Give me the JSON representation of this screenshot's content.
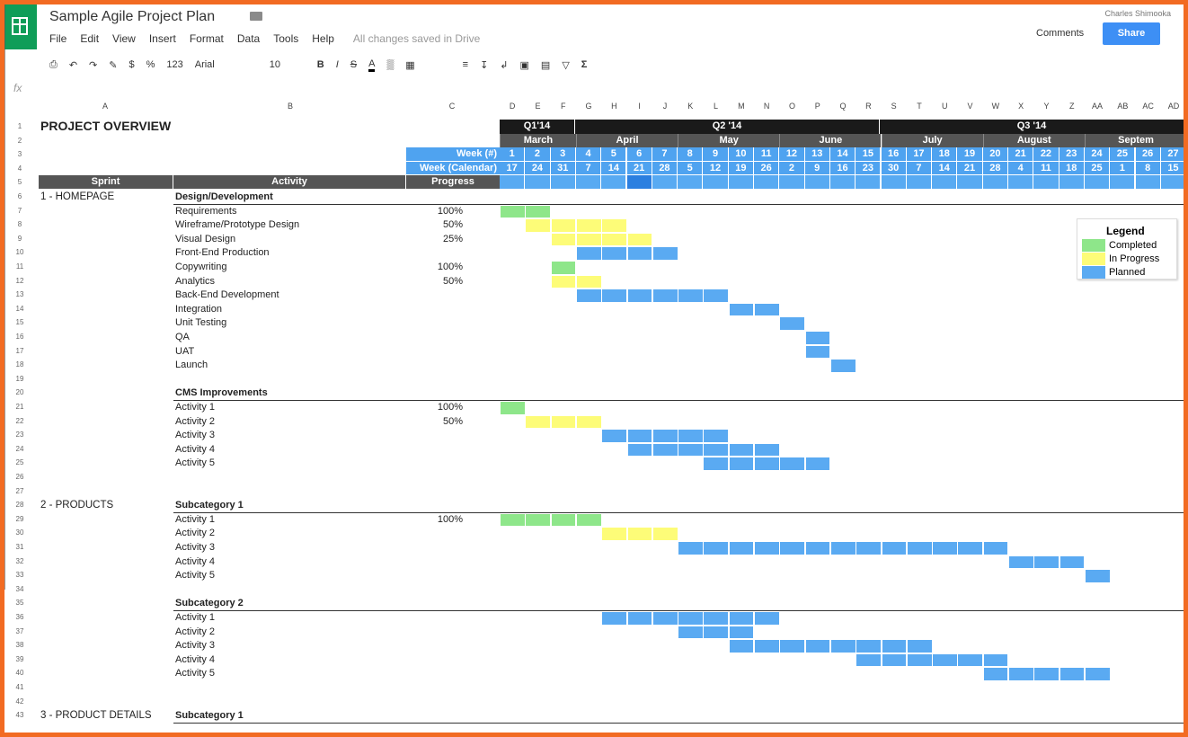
{
  "doc_title": "Sample Agile Project Plan",
  "menu": [
    "File",
    "Edit",
    "View",
    "Insert",
    "Format",
    "Data",
    "Tools",
    "Help"
  ],
  "saved_status": "All changes saved in Drive",
  "user_name": "Charles Shimooka",
  "comments_label": "Comments",
  "share_label": "Share",
  "toolbar": {
    "currency": "$",
    "percent": "%",
    "format_123": "123",
    "font": "Arial",
    "size": "10",
    "bold": "B",
    "italic": "I",
    "strike": "S",
    "text_color": "A",
    "sum": "Σ"
  },
  "fx_label": "fx",
  "columns": [
    "A",
    "B",
    "C",
    "D",
    "E",
    "F",
    "G",
    "H",
    "I",
    "J",
    "K",
    "L",
    "M",
    "N",
    "O",
    "P",
    "Q",
    "R",
    "S",
    "T",
    "U",
    "V",
    "W",
    "X",
    "Y",
    "Z",
    "AA",
    "AB",
    "AC",
    "AD"
  ],
  "sheet_title": "PROJECT OVERVIEW",
  "quarters": [
    "Q1'14",
    "Q2 '14",
    "Q3 '14"
  ],
  "months": [
    "March",
    "April",
    "May",
    "June",
    "July",
    "August",
    "Septem"
  ],
  "week_num_label": "Week (#)",
  "week_cal_label": "Week (Calendar)",
  "week_nums": [
    "1",
    "2",
    "3",
    "4",
    "5",
    "6",
    "7",
    "8",
    "9",
    "10",
    "11",
    "12",
    "13",
    "14",
    "15",
    "16",
    "17",
    "18",
    "19",
    "20",
    "21",
    "22",
    "23",
    "24",
    "25",
    "26",
    "27"
  ],
  "week_dates": [
    "17",
    "24",
    "31",
    "7",
    "14",
    "21",
    "28",
    "5",
    "12",
    "19",
    "26",
    "2",
    "9",
    "16",
    "23",
    "30",
    "7",
    "14",
    "21",
    "28",
    "4",
    "11",
    "18",
    "25",
    "1",
    "8",
    "15"
  ],
  "header_labels": {
    "sprint": "Sprint",
    "activity": "Activity",
    "progress": "Progress"
  },
  "row_numbers": [
    "1",
    "2",
    "3",
    "4",
    "5",
    "6",
    "7",
    "8",
    "9",
    "10",
    "11",
    "12",
    "13",
    "14",
    "15",
    "16",
    "17",
    "18",
    "19",
    "20",
    "21",
    "22",
    "23",
    "24",
    "25",
    "26",
    "27",
    "28",
    "29",
    "30",
    "31",
    "32",
    "33",
    "34",
    "35",
    "36",
    "37",
    "38",
    "39",
    "40",
    "41",
    "42",
    "43"
  ],
  "legend": {
    "title": "Legend",
    "completed": "Completed",
    "in_progress": "In Progress",
    "planned": "Planned"
  },
  "colors": {
    "completed": "#8ee68a",
    "in_progress": "#fdfc78",
    "planned": "#5aaaf2",
    "accent": "#0f9d58",
    "share": "#3d8ff5"
  },
  "rows": [
    {
      "row": 6,
      "sprint": "1 - HOMEPAGE",
      "activity": "Design/Development",
      "progress": "",
      "header": true,
      "bars": []
    },
    {
      "row": 7,
      "sprint": "",
      "activity": "Requirements",
      "progress": "100%",
      "bars": [
        {
          "start": 1,
          "end": 2,
          "status": "completed"
        }
      ]
    },
    {
      "row": 8,
      "sprint": "",
      "activity": "Wireframe/Prototype Design",
      "progress": "50%",
      "bars": [
        {
          "start": 2,
          "end": 2,
          "status": "in_progress"
        },
        {
          "start": 3,
          "end": 5,
          "status": "in_progress"
        }
      ]
    },
    {
      "row": 9,
      "sprint": "",
      "activity": "Visual Design",
      "progress": "25%",
      "bars": [
        {
          "start": 3,
          "end": 6,
          "status": "in_progress"
        }
      ]
    },
    {
      "row": 10,
      "sprint": "",
      "activity": "Front-End Production",
      "progress": "",
      "bars": [
        {
          "start": 4,
          "end": 7,
          "status": "planned"
        }
      ]
    },
    {
      "row": 11,
      "sprint": "",
      "activity": "Copywriting",
      "progress": "100%",
      "bars": [
        {
          "start": 3,
          "end": 3,
          "status": "completed"
        }
      ]
    },
    {
      "row": 12,
      "sprint": "",
      "activity": "Analytics",
      "progress": "50%",
      "bars": [
        {
          "start": 3,
          "end": 4,
          "status": "in_progress"
        }
      ]
    },
    {
      "row": 13,
      "sprint": "",
      "activity": "Back-End Development",
      "progress": "",
      "bars": [
        {
          "start": 4,
          "end": 9,
          "status": "planned"
        }
      ]
    },
    {
      "row": 14,
      "sprint": "",
      "activity": "Integration",
      "progress": "",
      "bars": [
        {
          "start": 10,
          "end": 11,
          "status": "planned"
        }
      ]
    },
    {
      "row": 15,
      "sprint": "",
      "activity": "Unit Testing",
      "progress": "",
      "bars": [
        {
          "start": 12,
          "end": 12,
          "status": "planned"
        }
      ]
    },
    {
      "row": 16,
      "sprint": "",
      "activity": "QA",
      "progress": "",
      "bars": [
        {
          "start": 13,
          "end": 13,
          "status": "planned"
        }
      ]
    },
    {
      "row": 17,
      "sprint": "",
      "activity": "UAT",
      "progress": "",
      "bars": [
        {
          "start": 13,
          "end": 13,
          "status": "planned"
        }
      ]
    },
    {
      "row": 18,
      "sprint": "",
      "activity": "Launch",
      "progress": "",
      "bars": [
        {
          "start": 14,
          "end": 14,
          "status": "planned"
        }
      ]
    },
    {
      "row": 20,
      "sprint": "",
      "activity": "CMS Improvements",
      "progress": "",
      "header": true,
      "bars": []
    },
    {
      "row": 21,
      "sprint": "",
      "activity": "Activity 1",
      "progress": "100%",
      "bars": [
        {
          "start": 1,
          "end": 1,
          "status": "completed"
        }
      ]
    },
    {
      "row": 22,
      "sprint": "",
      "activity": "Activity 2",
      "progress": "50%",
      "bars": [
        {
          "start": 2,
          "end": 4,
          "status": "in_progress"
        }
      ]
    },
    {
      "row": 23,
      "sprint": "",
      "activity": "Activity 3",
      "progress": "",
      "bars": [
        {
          "start": 5,
          "end": 9,
          "status": "planned"
        }
      ]
    },
    {
      "row": 24,
      "sprint": "",
      "activity": "Activity 4",
      "progress": "",
      "bars": [
        {
          "start": 6,
          "end": 11,
          "status": "planned"
        }
      ]
    },
    {
      "row": 25,
      "sprint": "",
      "activity": "Activity 5",
      "progress": "",
      "bars": [
        {
          "start": 9,
          "end": 13,
          "status": "planned"
        }
      ]
    },
    {
      "row": 28,
      "sprint": "2 - PRODUCTS",
      "activity": "Subcategory 1",
      "progress": "",
      "header": true,
      "bars": []
    },
    {
      "row": 29,
      "sprint": "",
      "activity": "Activity 1",
      "progress": "100%",
      "bars": [
        {
          "start": 1,
          "end": 4,
          "status": "completed"
        }
      ]
    },
    {
      "row": 30,
      "sprint": "",
      "activity": "Activity 2",
      "progress": "",
      "bars": [
        {
          "start": 5,
          "end": 7,
          "status": "in_progress"
        }
      ]
    },
    {
      "row": 31,
      "sprint": "",
      "activity": "Activity 3",
      "progress": "",
      "bars": [
        {
          "start": 8,
          "end": 20,
          "status": "planned"
        }
      ]
    },
    {
      "row": 32,
      "sprint": "",
      "activity": "Activity 4",
      "progress": "",
      "bars": [
        {
          "start": 21,
          "end": 23,
          "status": "planned"
        }
      ]
    },
    {
      "row": 33,
      "sprint": "",
      "activity": "Activity 5",
      "progress": "",
      "bars": [
        {
          "start": 24,
          "end": 24,
          "status": "planned"
        }
      ]
    },
    {
      "row": 35,
      "sprint": "",
      "activity": "Subcategory 2",
      "progress": "",
      "header": true,
      "bars": []
    },
    {
      "row": 36,
      "sprint": "",
      "activity": "Activity 1",
      "progress": "",
      "bars": [
        {
          "start": 5,
          "end": 11,
          "status": "planned"
        }
      ]
    },
    {
      "row": 37,
      "sprint": "",
      "activity": "Activity 2",
      "progress": "",
      "bars": [
        {
          "start": 8,
          "end": 10,
          "status": "planned"
        }
      ]
    },
    {
      "row": 38,
      "sprint": "",
      "activity": "Activity 3",
      "progress": "",
      "bars": [
        {
          "start": 10,
          "end": 17,
          "status": "planned"
        }
      ]
    },
    {
      "row": 39,
      "sprint": "",
      "activity": "Activity 4",
      "progress": "",
      "bars": [
        {
          "start": 15,
          "end": 20,
          "status": "planned"
        }
      ]
    },
    {
      "row": 40,
      "sprint": "",
      "activity": "Activity 5",
      "progress": "",
      "bars": [
        {
          "start": 20,
          "end": 24,
          "status": "planned"
        }
      ]
    },
    {
      "row": 43,
      "sprint": "3 - PRODUCT DETAILS",
      "activity": "Subcategory 1",
      "progress": "",
      "header": true,
      "bars": []
    }
  ]
}
